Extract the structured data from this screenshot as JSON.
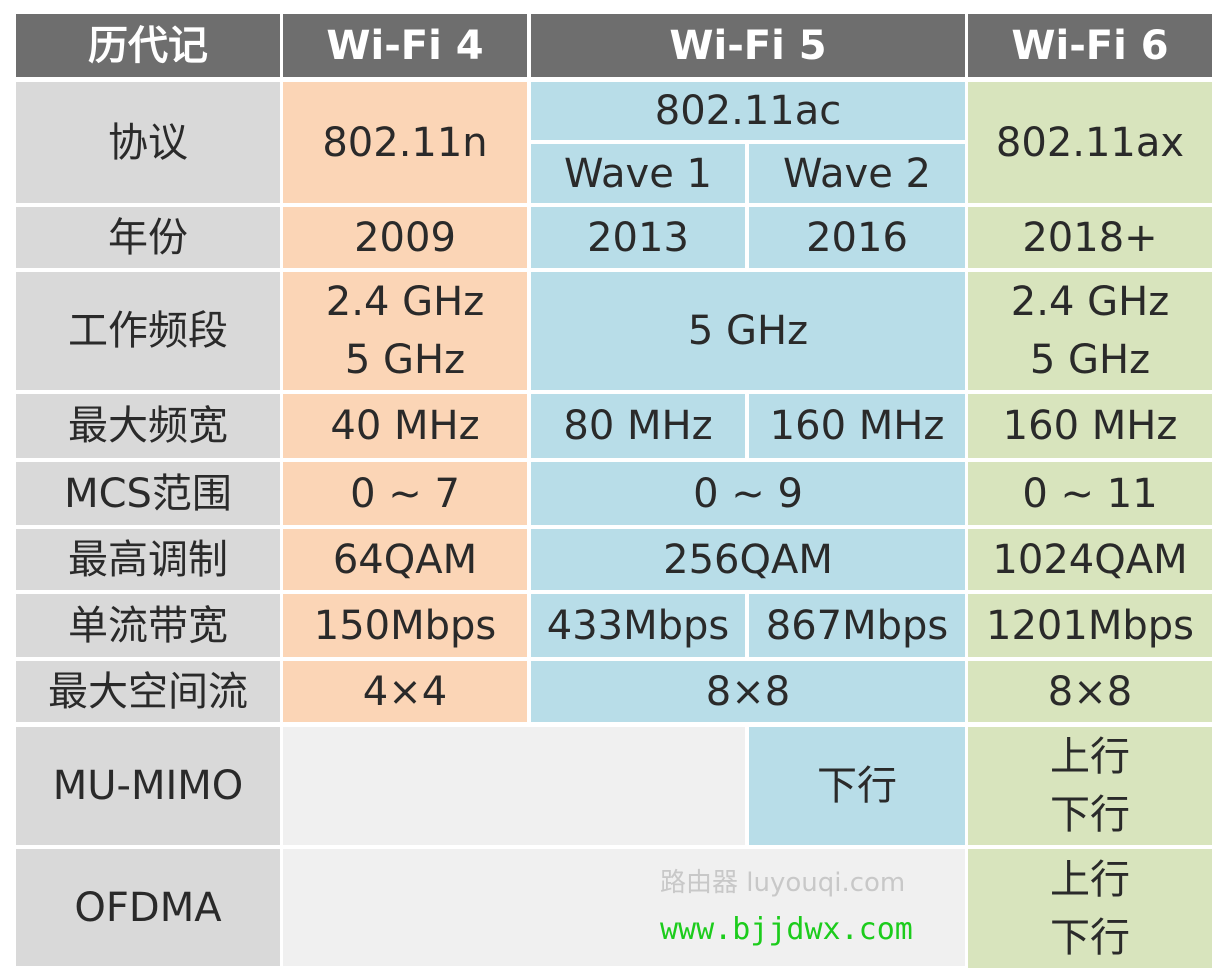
{
  "header": {
    "col0": "历代记",
    "col1": "Wi-Fi 4",
    "col2": "Wi-Fi 5",
    "col3": "Wi-Fi 6"
  },
  "rows": {
    "protocol": {
      "label": "协议",
      "wifi4": "802.11n",
      "wifi5": "802.11ac",
      "wave1": "Wave 1",
      "wave2": "Wave 2",
      "wifi6": "802.11ax"
    },
    "year": {
      "label": "年份",
      "wifi4": "2009",
      "wave1": "2013",
      "wave2": "2016",
      "wifi6": "2018+"
    },
    "band": {
      "label": "工作频段",
      "wifi4": "2.4 GHz\n5 GHz",
      "wifi5": "5 GHz",
      "wifi6": "2.4 GHz\n5 GHz"
    },
    "max_width": {
      "label": "最大频宽",
      "wifi4": "40 MHz",
      "wave1": "80 MHz",
      "wave2": "160 MHz",
      "wifi6": "160 MHz"
    },
    "mcs": {
      "label": "MCS范围",
      "wifi4": "0 ~ 7",
      "wifi5": "0 ~ 9",
      "wifi6": "0 ~ 11"
    },
    "modulation": {
      "label": "最高调制",
      "wifi4": "64QAM",
      "wifi5": "256QAM",
      "wifi6": "1024QAM"
    },
    "stream_bw": {
      "label": "单流带宽",
      "wifi4": "150Mbps",
      "wave1": "433Mbps",
      "wave2": "867Mbps",
      "wifi6": "1201Mbps"
    },
    "spatial": {
      "label": "最大空间流",
      "wifi4": "4×4",
      "wifi5": "8×8",
      "wifi6": "8×8"
    },
    "mumimo": {
      "label": "MU-MIMO",
      "wave2": "下行",
      "wifi6": "上行\n下行"
    },
    "ofdma": {
      "label": "OFDMA",
      "wifi6": "上行\n下行"
    }
  },
  "watermarks": {
    "luyouqi": "路由器 luyouqi.com",
    "site": "www.bjjdwx.com"
  },
  "colors": {
    "header": "#6e6e6e",
    "label": "#d9d9d9",
    "wifi4": "#fbd5b6",
    "wifi5": "#b8dde8",
    "wifi6": "#d8e4bd",
    "empty": "#f0f0f0"
  }
}
